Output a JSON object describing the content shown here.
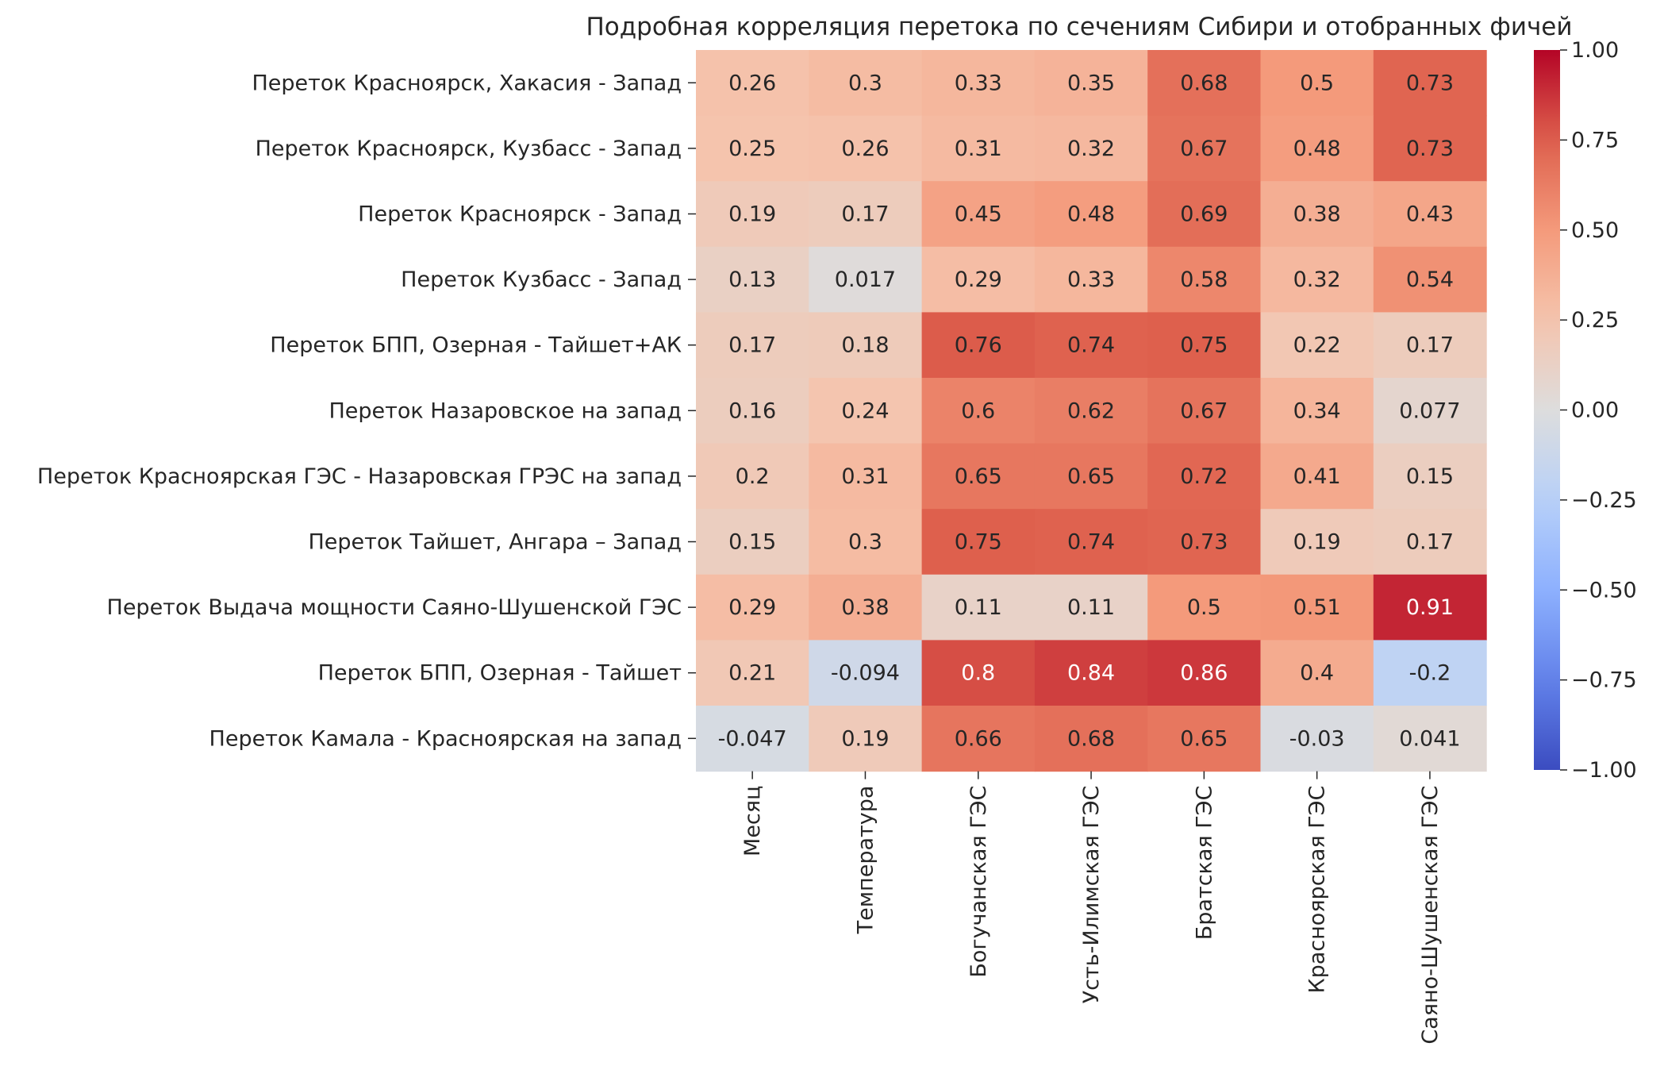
{
  "chart_data": {
    "type": "heatmap",
    "title": "Подробная корреляция перетока по сечениям Сибири и отобранных фичей",
    "columns": [
      "Месяц",
      "Температура",
      "Богучанская ГЭС",
      "Усть-Илимская ГЭС",
      "Братская ГЭС",
      "Красноярская ГЭС",
      "Саяно-Шушенская ГЭС"
    ],
    "rows": [
      "Переток Красноярск, Хакасия - Запад",
      "Переток Красноярск, Кузбасс - Запад",
      "Переток Красноярск - Запад",
      "Переток Кузбасс - Запад",
      "Переток БПП, Озерная - Тайшет+АК",
      "Переток Назаровское на запад",
      "Переток Красноярская ГЭС - Назаровская ГРЭС на запад",
      "Переток Тайшет, Ангара – Запад",
      "Переток Выдача мощности Саяно-Шушенской ГЭС",
      "Переток БПП, Озерная - Тайшет",
      "Переток Камала - Красноярская на запад"
    ],
    "values": [
      [
        0.26,
        0.3,
        0.33,
        0.35,
        0.68,
        0.5,
        0.73
      ],
      [
        0.25,
        0.26,
        0.31,
        0.32,
        0.67,
        0.48,
        0.73
      ],
      [
        0.19,
        0.17,
        0.45,
        0.48,
        0.69,
        0.38,
        0.43
      ],
      [
        0.13,
        0.017,
        0.29,
        0.33,
        0.58,
        0.32,
        0.54
      ],
      [
        0.17,
        0.18,
        0.76,
        0.74,
        0.75,
        0.22,
        0.17
      ],
      [
        0.16,
        0.24,
        0.6,
        0.62,
        0.67,
        0.34,
        0.077
      ],
      [
        0.2,
        0.31,
        0.65,
        0.65,
        0.72,
        0.41,
        0.15
      ],
      [
        0.15,
        0.3,
        0.75,
        0.74,
        0.73,
        0.19,
        0.17
      ],
      [
        0.29,
        0.38,
        0.11,
        0.11,
        0.5,
        0.51,
        0.91
      ],
      [
        0.21,
        -0.094,
        0.8,
        0.84,
        0.86,
        0.4,
        -0.2
      ],
      [
        -0.047,
        0.19,
        0.66,
        0.68,
        0.65,
        -0.03,
        0.041
      ]
    ],
    "colormap": "coolwarm",
    "vmin": -1.0,
    "vmax": 1.0,
    "colorbar_ticks": [
      "1.00",
      "0.75",
      "0.50",
      "0.25",
      "0.00",
      "−0.25",
      "−0.50",
      "−0.75",
      "−1.00"
    ],
    "colorbar_tick_values": [
      1.0,
      0.75,
      0.5,
      0.25,
      0.0,
      -0.25,
      -0.5,
      -0.75,
      -1.0
    ],
    "annotation_text_dark": "#262626",
    "annotation_text_light": "#ffffff"
  }
}
